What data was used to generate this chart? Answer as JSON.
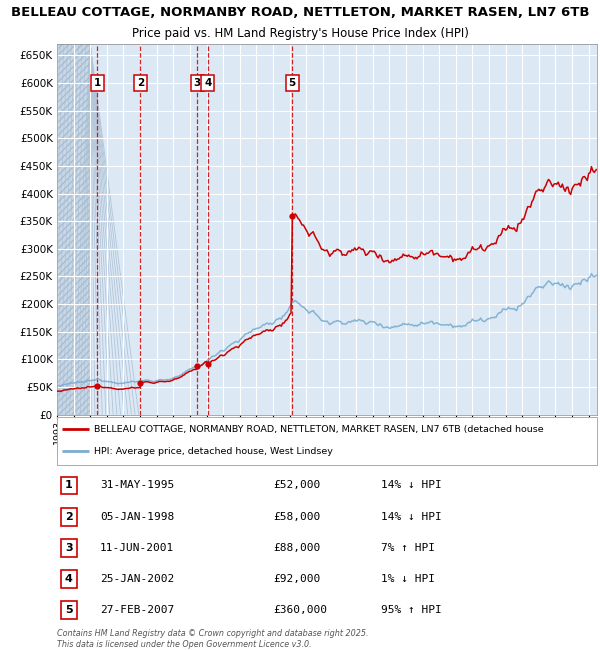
{
  "title_line1": "BELLEAU COTTAGE, NORMANBY ROAD, NETTLETON, MARKET RASEN, LN7 6TB",
  "title_line2": "Price paid vs. HM Land Registry's House Price Index (HPI)",
  "transactions": [
    {
      "num": 1,
      "date_label": "31-MAY-1995",
      "date_x": 1995.42,
      "price": 52000,
      "pct": "14%",
      "dir": "↓"
    },
    {
      "num": 2,
      "date_label": "05-JAN-1998",
      "date_x": 1998.02,
      "price": 58000,
      "pct": "14%",
      "dir": "↓"
    },
    {
      "num": 3,
      "date_label": "11-JUN-2001",
      "date_x": 2001.44,
      "price": 88000,
      "pct": "7%",
      "dir": "↑"
    },
    {
      "num": 4,
      "date_label": "25-JAN-2002",
      "date_x": 2002.07,
      "price": 92000,
      "pct": "1%",
      "dir": "↓"
    },
    {
      "num": 5,
      "date_label": "27-FEB-2007",
      "date_x": 2007.16,
      "price": 360000,
      "pct": "95%",
      "dir": "↑"
    }
  ],
  "legend_red": "BELLEAU COTTAGE, NORMANBY ROAD, NETTLETON, MARKET RASEN, LN7 6TB (detached house",
  "legend_blue": "HPI: Average price, detached house, West Lindsey",
  "footer": "Contains HM Land Registry data © Crown copyright and database right 2025.\nThis data is licensed under the Open Government Licence v3.0.",
  "ylim": [
    0,
    670000
  ],
  "xlim": [
    1993.0,
    2025.5
  ],
  "red_color": "#cc0000",
  "blue_color": "#7aadcf",
  "bg_color": "#dce9f5",
  "grid_color": "#ffffff",
  "hatch_bg": "#c8d8e8"
}
